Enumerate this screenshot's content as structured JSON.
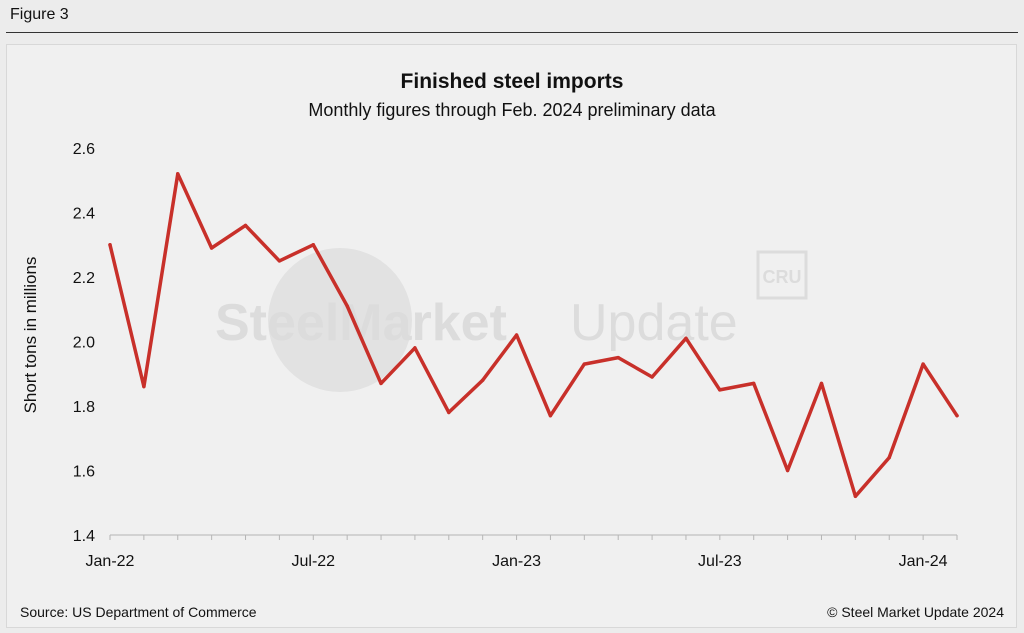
{
  "figure_label": "Figure 3",
  "footer": {
    "source": "Source: US Department of Commerce",
    "copyright": "© Steel Market Update 2024"
  },
  "watermark": {
    "brand_bold": "SteelMarket",
    "brand_light": "Update",
    "logo_text": "CRU"
  },
  "colors": {
    "line": "#c8302a",
    "background": "#f0f0f0",
    "watermark": "#dcdcdc"
  },
  "chart_data": {
    "type": "line",
    "title": "Finished steel imports",
    "subtitle": "Monthly figures through Feb. 2024 preliminary data",
    "xlabel": "",
    "ylabel": "Short tons in millions",
    "ylim": [
      1.4,
      2.6
    ],
    "yticks": [
      1.4,
      1.6,
      1.8,
      2.0,
      2.2,
      2.4,
      2.6
    ],
    "ytick_labels": [
      "1.4",
      "1.6",
      "1.8",
      "2.0",
      "2.2",
      "2.4",
      "2.6"
    ],
    "x_tick_labels": [
      {
        "index": 0,
        "label": "Jan-22"
      },
      {
        "index": 6,
        "label": "Jul-22"
      },
      {
        "index": 12,
        "label": "Jan-23"
      },
      {
        "index": 18,
        "label": "Jul-23"
      },
      {
        "index": 24,
        "label": "Jan-24"
      }
    ],
    "grid": false,
    "series": [
      {
        "values": [
          2.3,
          1.86,
          2.52,
          2.29,
          2.36,
          2.25,
          2.3,
          2.11,
          1.87,
          1.98,
          1.78,
          1.88,
          2.02,
          1.77,
          1.93,
          1.95,
          1.89,
          2.01,
          1.85,
          1.87,
          1.6,
          1.87,
          1.52,
          1.64,
          1.93,
          1.77
        ]
      }
    ]
  }
}
